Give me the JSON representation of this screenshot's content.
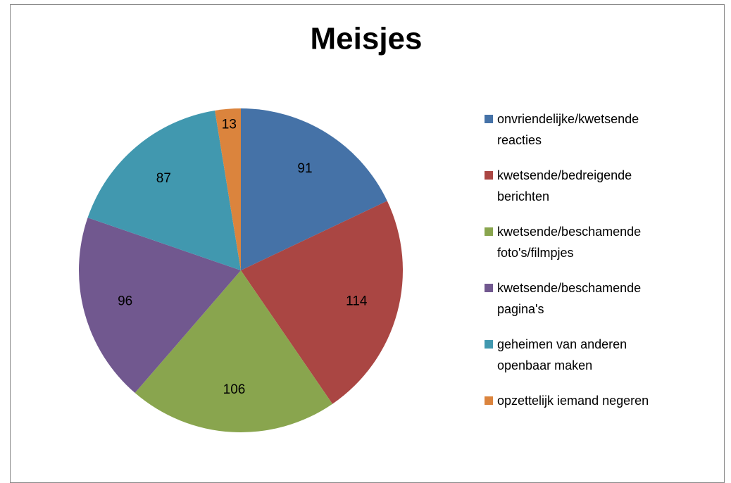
{
  "chart_data": {
    "type": "pie",
    "title": "Meisjes",
    "categories": [
      "onvriendelijke/kwetsende reacties",
      "kwetsende/bedreigende berichten",
      "kwetsende/beschamende foto's/filmpjes",
      "kwetsende/beschamende pagina's",
      "geheimen van anderen openbaar maken",
      "opzettelijk iemand negeren"
    ],
    "values": [
      91,
      114,
      106,
      96,
      87,
      13
    ],
    "colors": [
      "#4572a7",
      "#aa4643",
      "#89a54e",
      "#71588f",
      "#4198af",
      "#db843d"
    ],
    "legend": "right"
  }
}
